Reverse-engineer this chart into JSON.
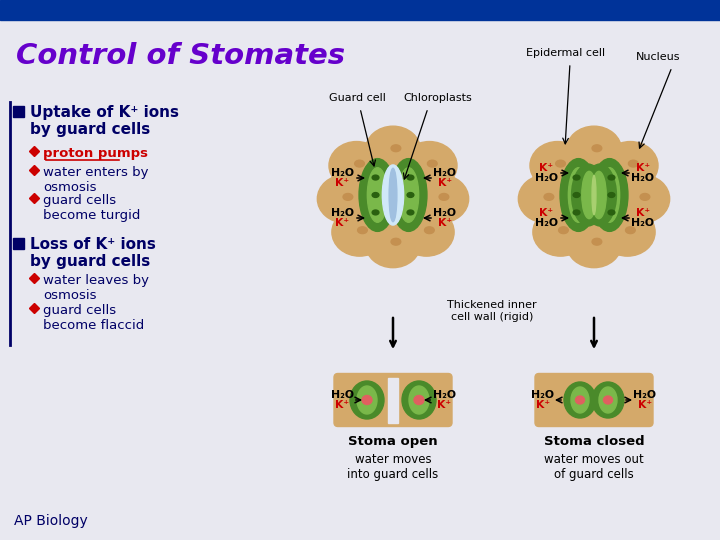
{
  "title": "Control of Stomates",
  "title_color": "#6600CC",
  "background_top": "#003399",
  "background_main": "#E8E8F0",
  "guard_cell_label": "Guard cell",
  "chloroplasts_label": "Chloroplasts",
  "epidermal_label": "Epidermal cell",
  "nucleus_label": "Nucleus",
  "bullet1_main": "Uptake of K⁺ ions\nby guard cells",
  "bullet1_sub1": "proton pumps",
  "bullet1_sub2": "water enters by\nosmosis",
  "bullet1_sub3": "guard cells\nbecome turgid",
  "bullet2_main": "Loss of K⁺ ions\nby guard cells",
  "bullet2_sub1": "water leaves by\nosmosis",
  "bullet2_sub2": "guard cells\nbecome flaccid",
  "thickened_label": "Thickened inner\ncell wall (rigid)",
  "stoma_open": "Stoma open",
  "stoma_closed": "Stoma closed",
  "water_in": "water moves\ninto guard cells",
  "water_out": "water moves out\nof guard cells",
  "ap_biology": "AP Biology",
  "tan_color": "#D4A96A",
  "tan_dark": "#C49050",
  "green_color": "#4A8A2A",
  "light_green": "#7AB84A",
  "dark_green": "#2A6010",
  "very_light_green": "#A8D070",
  "red_text": "#CC0000",
  "black": "#000000",
  "white": "#FFFFFF",
  "blue_text": "#000066",
  "purple_text": "#660099",
  "blue_bar": "#003399",
  "pink_nucleus": "#E06060"
}
